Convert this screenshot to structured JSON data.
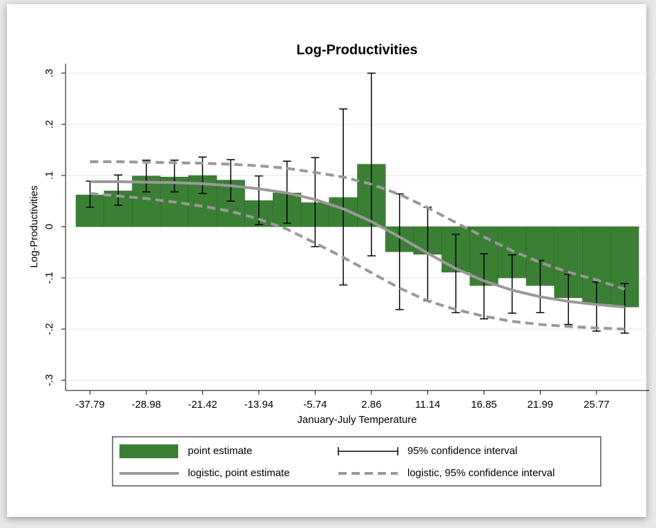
{
  "chart_data": {
    "type": "bar",
    "title": "Log-Productivities",
    "x_label": "January-July Temperature",
    "y_label": "Log-Productivities",
    "categories": [
      "-37.79",
      null,
      "-28.98",
      null,
      "-21.42",
      null,
      "-13.94",
      null,
      "-5.74",
      null,
      "2.86",
      null,
      "11.14",
      null,
      "16.85",
      null,
      "21.99",
      null,
      "25.77",
      null
    ],
    "ylim": [
      -0.32,
      0.32
    ],
    "yticks": [
      {
        "value": 0.3,
        "label": ".3"
      },
      {
        "value": 0.2,
        "label": ".2"
      },
      {
        "value": 0.1,
        "label": ".1"
      },
      0,
      {
        "value": -0.1,
        "label": "-.1"
      },
      {
        "value": -0.2,
        "label": "-.2"
      },
      {
        "value": -0.3,
        "label": "-.3"
      }
    ],
    "grid": true,
    "series": [
      {
        "name": "point estimate",
        "color": "#3b7f35",
        "kind": "bar",
        "values": [
          0.062,
          0.07,
          0.099,
          0.097,
          0.1,
          0.091,
          0.051,
          0.066,
          0.047,
          0.057,
          0.122,
          -0.049,
          -0.054,
          -0.089,
          -0.115,
          -0.1,
          -0.115,
          -0.139,
          -0.151,
          -0.157
        ]
      },
      {
        "name": "95% confidence interval",
        "color": "#000000",
        "kind": "errorbar",
        "lower": [
          0.038,
          0.042,
          0.068,
          0.068,
          0.065,
          0.05,
          0.004,
          0.007,
          -0.039,
          -0.114,
          -0.057,
          -0.162,
          -0.145,
          -0.168,
          -0.18,
          -0.169,
          -0.168,
          -0.191,
          -0.204,
          -0.208
        ],
        "upper": [
          0.089,
          0.101,
          0.13,
          0.13,
          0.136,
          0.131,
          0.099,
          0.128,
          0.135,
          0.23,
          0.3,
          0.064,
          0.038,
          -0.015,
          -0.053,
          -0.055,
          -0.066,
          -0.093,
          -0.108,
          -0.111
        ]
      },
      {
        "name": "logistic, point estimate",
        "color": "#999999",
        "kind": "line",
        "values": [
          0.088,
          0.088,
          0.087,
          0.086,
          0.084,
          0.08,
          0.074,
          0.066,
          0.053,
          0.035,
          0.01,
          -0.02,
          -0.052,
          -0.082,
          -0.106,
          -0.124,
          -0.137,
          -0.146,
          -0.152,
          -0.157
        ]
      },
      {
        "name": "logistic, 95% confidence interval",
        "color": "#999999",
        "kind": "band",
        "dashed": true,
        "lower": [
          0.065,
          0.06,
          0.055,
          0.048,
          0.04,
          0.03,
          0.015,
          -0.005,
          -0.032,
          -0.06,
          -0.09,
          -0.12,
          -0.145,
          -0.162,
          -0.175,
          -0.185,
          -0.191,
          -0.195,
          -0.198,
          -0.2
        ],
        "upper": [
          0.127,
          0.127,
          0.126,
          0.125,
          0.124,
          0.122,
          0.119,
          0.114,
          0.106,
          0.097,
          0.083,
          0.063,
          0.037,
          0.008,
          -0.02,
          -0.047,
          -0.07,
          -0.089,
          -0.104,
          -0.122
        ]
      }
    ]
  }
}
